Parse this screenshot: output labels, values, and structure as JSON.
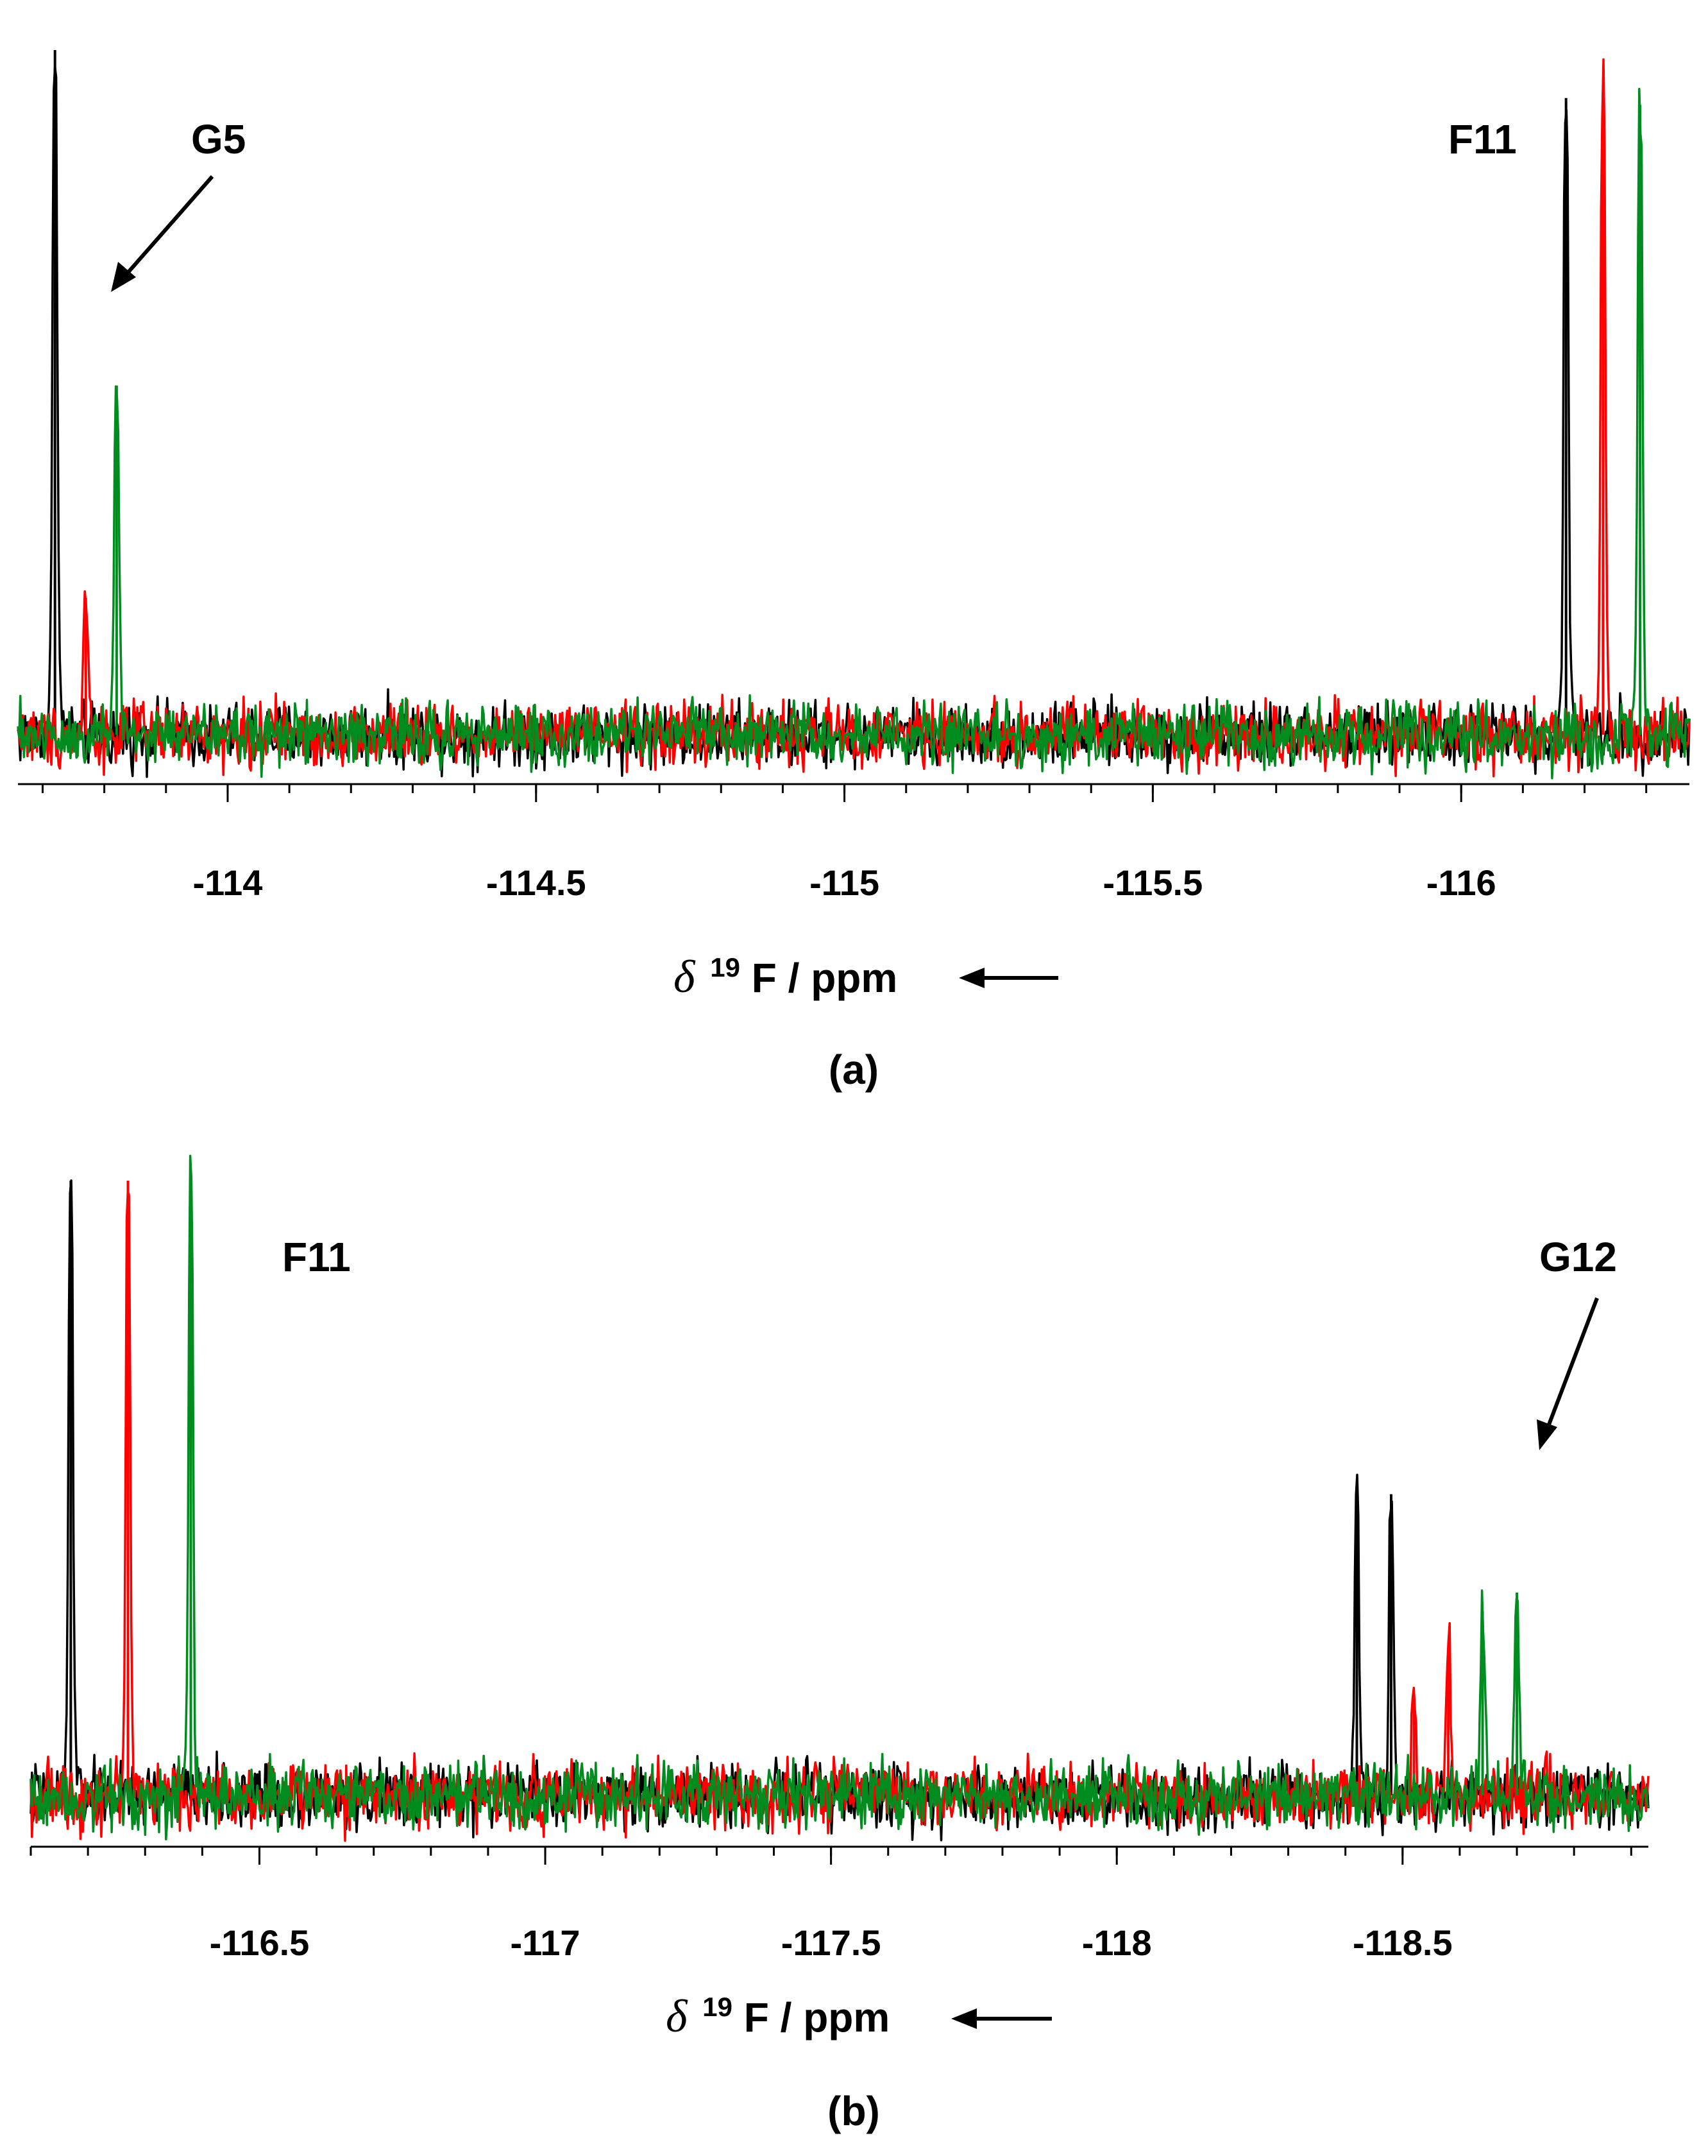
{
  "chart_data": [
    {
      "type": "line",
      "panel_label": "(a)",
      "xlabel_symbol": "δ",
      "xlabel_sup": "19",
      "xlabel_rest": "F / ppm",
      "x_direction": "reversed",
      "xlim": [
        -113.66,
        -116.37
      ],
      "baseline_noise": 0.035,
      "x_ticks": [
        {
          "value": -114,
          "label": "-114"
        },
        {
          "value": -114.5,
          "label": "-114.5"
        },
        {
          "value": -115,
          "label": "-115"
        },
        {
          "value": -115.5,
          "label": "-115.5"
        },
        {
          "value": -116,
          "label": "-116"
        }
      ],
      "series": [
        {
          "color": "#000000",
          "peaks": [
            {
              "x": -113.72,
              "height": 1.0
            },
            {
              "x": -116.17,
              "height": 0.93
            }
          ]
        },
        {
          "color": "#ff0000",
          "peaks": [
            {
              "x": -113.77,
              "height": 0.2
            },
            {
              "x": -116.23,
              "height": 0.94
            }
          ]
        },
        {
          "color": "#008c1e",
          "peaks": [
            {
              "x": -113.82,
              "height": 0.51
            },
            {
              "x": -116.29,
              "height": 0.92
            }
          ]
        }
      ],
      "annotations": [
        {
          "text": "G5",
          "arrow_to_x": -113.82
        },
        {
          "text": "F11"
        }
      ],
      "grid": false
    },
    {
      "type": "line",
      "panel_label": "(b)",
      "xlabel_symbol": "δ",
      "xlabel_sup": "19",
      "xlabel_rest": "F / ppm",
      "x_direction": "reversed",
      "xlim": [
        -116.1,
        -118.93
      ],
      "baseline_noise": 0.04,
      "x_ticks": [
        {
          "value": -116.5,
          "label": "-116.5"
        },
        {
          "value": -117,
          "label": "-117"
        },
        {
          "value": -117.5,
          "label": "-117.5"
        },
        {
          "value": -118,
          "label": "-118"
        },
        {
          "value": -118.5,
          "label": "-118.5"
        }
      ],
      "series": [
        {
          "color": "#000000",
          "peaks": [
            {
              "x": -116.17,
              "height": 1.0
            },
            {
              "x": -118.42,
              "height": 0.5
            },
            {
              "x": -118.48,
              "height": 0.49
            }
          ]
        },
        {
          "color": "#ff0000",
          "peaks": [
            {
              "x": -116.27,
              "height": 1.0
            },
            {
              "x": -118.52,
              "height": 0.16
            },
            {
              "x": -118.58,
              "height": 0.23
            }
          ]
        },
        {
          "color": "#008c1e",
          "peaks": [
            {
              "x": -116.38,
              "height": 1.0
            },
            {
              "x": -118.64,
              "height": 0.3
            },
            {
              "x": -118.7,
              "height": 0.33
            }
          ]
        }
      ],
      "annotations": [
        {
          "text": "F11"
        },
        {
          "text": "G12",
          "arrow_to_x": -118.63
        }
      ],
      "grid": false
    }
  ]
}
